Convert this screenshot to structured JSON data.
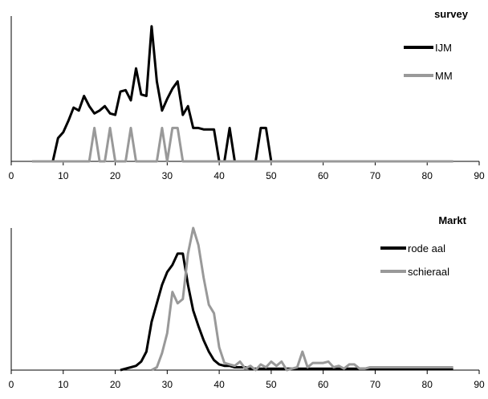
{
  "chart_data": [
    {
      "type": "line",
      "title": "",
      "xlabel": "",
      "ylabel": "",
      "xlim": [
        0,
        90
      ],
      "xticks": [
        0,
        10,
        20,
        30,
        40,
        50,
        60,
        70,
        80,
        90
      ],
      "ylim": [
        0,
        1
      ],
      "grid": false,
      "legend": {
        "title": "survey",
        "placement": "top-right"
      },
      "series": [
        {
          "name": "IJM",
          "color": "#000000",
          "x": [
            8,
            9,
            10,
            11,
            12,
            13,
            14,
            15,
            16,
            17,
            18,
            19,
            20,
            21,
            22,
            23,
            24,
            25,
            26,
            27,
            28,
            29,
            30,
            31,
            32,
            33,
            34,
            35,
            36,
            37,
            38,
            39,
            40,
            41,
            42,
            43,
            44,
            45,
            46,
            47,
            48,
            49,
            50
          ],
          "y": [
            0,
            0.16,
            0.2,
            0.28,
            0.37,
            0.35,
            0.45,
            0.38,
            0.33,
            0.35,
            0.38,
            0.33,
            0.32,
            0.48,
            0.49,
            0.42,
            0.64,
            0.46,
            0.45,
            0.93,
            0.55,
            0.35,
            0.43,
            0.5,
            0.55,
            0.32,
            0.38,
            0.23,
            0.23,
            0.22,
            0.22,
            0.22,
            0,
            0,
            0.23,
            0,
            0,
            0,
            0,
            0,
            0.23,
            0.23,
            0
          ]
        },
        {
          "name": "MM",
          "color": "#999999",
          "x": [
            4,
            5,
            6,
            7,
            8,
            9,
            10,
            11,
            12,
            13,
            14,
            15,
            16,
            17,
            18,
            19,
            20,
            21,
            22,
            23,
            24,
            25,
            26,
            27,
            28,
            29,
            30,
            31,
            32,
            33,
            34,
            35,
            36,
            37,
            38,
            39,
            40,
            41,
            42,
            43,
            44,
            45,
            46,
            47,
            48,
            49,
            50,
            51,
            52,
            53,
            54,
            55,
            56,
            57,
            58,
            59,
            60,
            61,
            62,
            63,
            64,
            65,
            66,
            67,
            68,
            69,
            70,
            71,
            72,
            73,
            74,
            75,
            76,
            77,
            78,
            79,
            80,
            81,
            82,
            83,
            84,
            85
          ],
          "y": [
            0,
            0,
            0,
            0,
            0,
            0,
            0,
            0,
            0,
            0,
            0,
            0,
            0.23,
            0,
            0,
            0.23,
            0,
            0,
            0,
            0.23,
            0,
            0,
            0,
            0,
            0,
            0.23,
            0,
            0.23,
            0.23,
            0,
            0,
            0,
            0,
            0,
            0,
            0,
            0,
            0,
            0,
            0,
            0,
            0,
            0,
            0,
            0,
            0,
            0,
            0,
            0,
            0,
            0,
            0,
            0,
            0,
            0,
            0,
            0,
            0,
            0,
            0,
            0,
            0,
            0,
            0,
            0,
            0,
            0,
            0,
            0,
            0,
            0,
            0,
            0,
            0,
            0,
            0,
            0,
            0,
            0,
            0,
            0,
            0
          ]
        }
      ]
    },
    {
      "type": "line",
      "title": "",
      "xlabel": "",
      "ylabel": "",
      "xlim": [
        0,
        90
      ],
      "xticks": [
        0,
        10,
        20,
        30,
        40,
        50,
        60,
        70,
        80,
        90
      ],
      "ylim": [
        0,
        1
      ],
      "grid": false,
      "legend": {
        "title": "Markt",
        "placement": "top-right"
      },
      "series": [
        {
          "name": "rode aal",
          "color": "#000000",
          "x": [
            21,
            22,
            23,
            24,
            25,
            26,
            27,
            28,
            29,
            30,
            31,
            32,
            33,
            34,
            35,
            36,
            37,
            38,
            39,
            40,
            41,
            42,
            43,
            44,
            45,
            46,
            47,
            48,
            49,
            50,
            51,
            52,
            53,
            54,
            55,
            56,
            57,
            58,
            59,
            60,
            61,
            62,
            63,
            64,
            65,
            66,
            67,
            68,
            69,
            70,
            71,
            72,
            73,
            74,
            75,
            76,
            77,
            78,
            79,
            80,
            81,
            82,
            83,
            84,
            85
          ],
          "y": [
            0,
            0.01,
            0.02,
            0.03,
            0.06,
            0.13,
            0.34,
            0.47,
            0.6,
            0.69,
            0.74,
            0.82,
            0.82,
            0.6,
            0.42,
            0.31,
            0.21,
            0.13,
            0.07,
            0.04,
            0.03,
            0.03,
            0.02,
            0.02,
            0.02,
            0.01,
            0.01,
            0.01,
            0.01,
            0.01,
            0.01,
            0.01,
            0.01,
            0.01,
            0.01,
            0.01,
            0.01,
            0.01,
            0.01,
            0.01,
            0.01,
            0.01,
            0.01,
            0.01,
            0.01,
            0.01,
            0.01,
            0.01,
            0.01,
            0.01,
            0.01,
            0.01,
            0.01,
            0.01,
            0.01,
            0.01,
            0.01,
            0.01,
            0.01,
            0.01,
            0.01,
            0.01,
            0.01,
            0.01,
            0.01
          ]
        },
        {
          "name": "schieraal",
          "color": "#999999",
          "x": [
            27,
            28,
            29,
            30,
            31,
            32,
            33,
            34,
            35,
            36,
            37,
            38,
            39,
            40,
            41,
            42,
            43,
            44,
            45,
            46,
            47,
            48,
            49,
            50,
            51,
            52,
            53,
            54,
            55,
            56,
            57,
            58,
            59,
            60,
            61,
            62,
            63,
            64,
            65,
            66,
            67,
            68,
            69,
            70,
            71,
            72,
            73,
            74,
            75,
            76,
            77,
            78,
            79,
            80,
            81,
            82,
            83,
            84,
            85
          ],
          "y": [
            0,
            0.02,
            0.12,
            0.26,
            0.55,
            0.47,
            0.5,
            0.82,
            1.0,
            0.88,
            0.65,
            0.46,
            0.4,
            0.16,
            0.05,
            0.04,
            0.03,
            0.06,
            0.01,
            0.03,
            0,
            0.04,
            0.02,
            0.06,
            0.03,
            0.06,
            0,
            0.01,
            0.02,
            0.13,
            0.02,
            0.05,
            0.05,
            0.05,
            0.06,
            0.02,
            0.03,
            0.01,
            0.04,
            0.04,
            0.01,
            0.01,
            0.02,
            0.02,
            0.02,
            0.02,
            0.02,
            0.02,
            0.02,
            0.02,
            0.02,
            0.02,
            0.02,
            0.02,
            0.02,
            0.02,
            0.02,
            0.02,
            0.02
          ]
        }
      ]
    }
  ]
}
